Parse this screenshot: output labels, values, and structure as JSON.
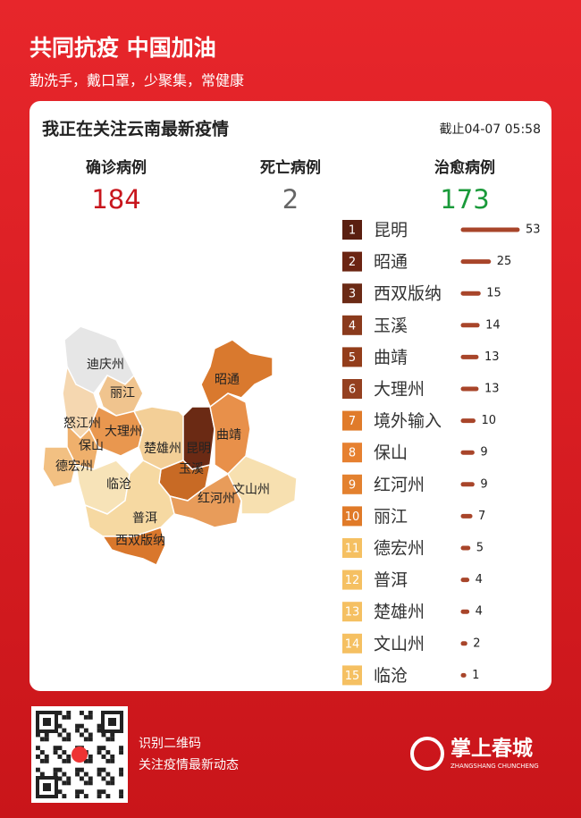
{
  "header": {
    "title": "共同抗疫 中国加油",
    "subtitle": "勤洗手，戴口罩，少聚集，常健康"
  },
  "card": {
    "title": "我正在关注云南最新疫情",
    "updated": "截止04-07 05:58"
  },
  "stats": [
    {
      "label": "确诊病例",
      "value": 184,
      "color": "#c8161d"
    },
    {
      "label": "死亡病例",
      "value": 2,
      "color": "#666666"
    },
    {
      "label": "治愈病例",
      "value": 173,
      "color": "#1a9a3a"
    }
  ],
  "map": {
    "labels": [
      "迪庆州",
      "丽江",
      "怒江州",
      "大理州",
      "保山",
      "德宏州",
      "临沧",
      "楚雄州",
      "昆明",
      "玉溪",
      "曲靖",
      "昭通",
      "红河州",
      "文山州",
      "普洱",
      "西双版纳"
    ]
  },
  "chart_data": {
    "type": "bar",
    "categories": [
      "昆明",
      "昭通",
      "西双版纳",
      "玉溪",
      "曲靖",
      "大理州",
      "境外输入",
      "保山",
      "红河州",
      "丽江",
      "德宏州",
      "普洱",
      "楚雄州",
      "文山州",
      "临沧"
    ],
    "ranks": [
      1,
      2,
      3,
      4,
      5,
      6,
      7,
      8,
      9,
      10,
      11,
      12,
      13,
      14,
      15
    ],
    "values": [
      53,
      25,
      15,
      14,
      13,
      13,
      10,
      9,
      9,
      7,
      5,
      4,
      4,
      2,
      1
    ],
    "color": "#a8452a",
    "badge_colors": [
      "#5a1f10",
      "#6b2412",
      "#6b2a15",
      "#8a3a1c",
      "#933d1a",
      "#944020",
      "#e07b2a",
      "#e68030",
      "#e3812f",
      "#e07a28",
      "#f5c062",
      "#f5c062",
      "#f5c062",
      "#f5c062",
      "#f5c062"
    ]
  },
  "footer": {
    "lines": [
      "识别二维码",
      "关注疫情最新动态"
    ],
    "brand": "掌上春城",
    "brand_sub": "ZHANGSHANG CHUNCHENG"
  }
}
